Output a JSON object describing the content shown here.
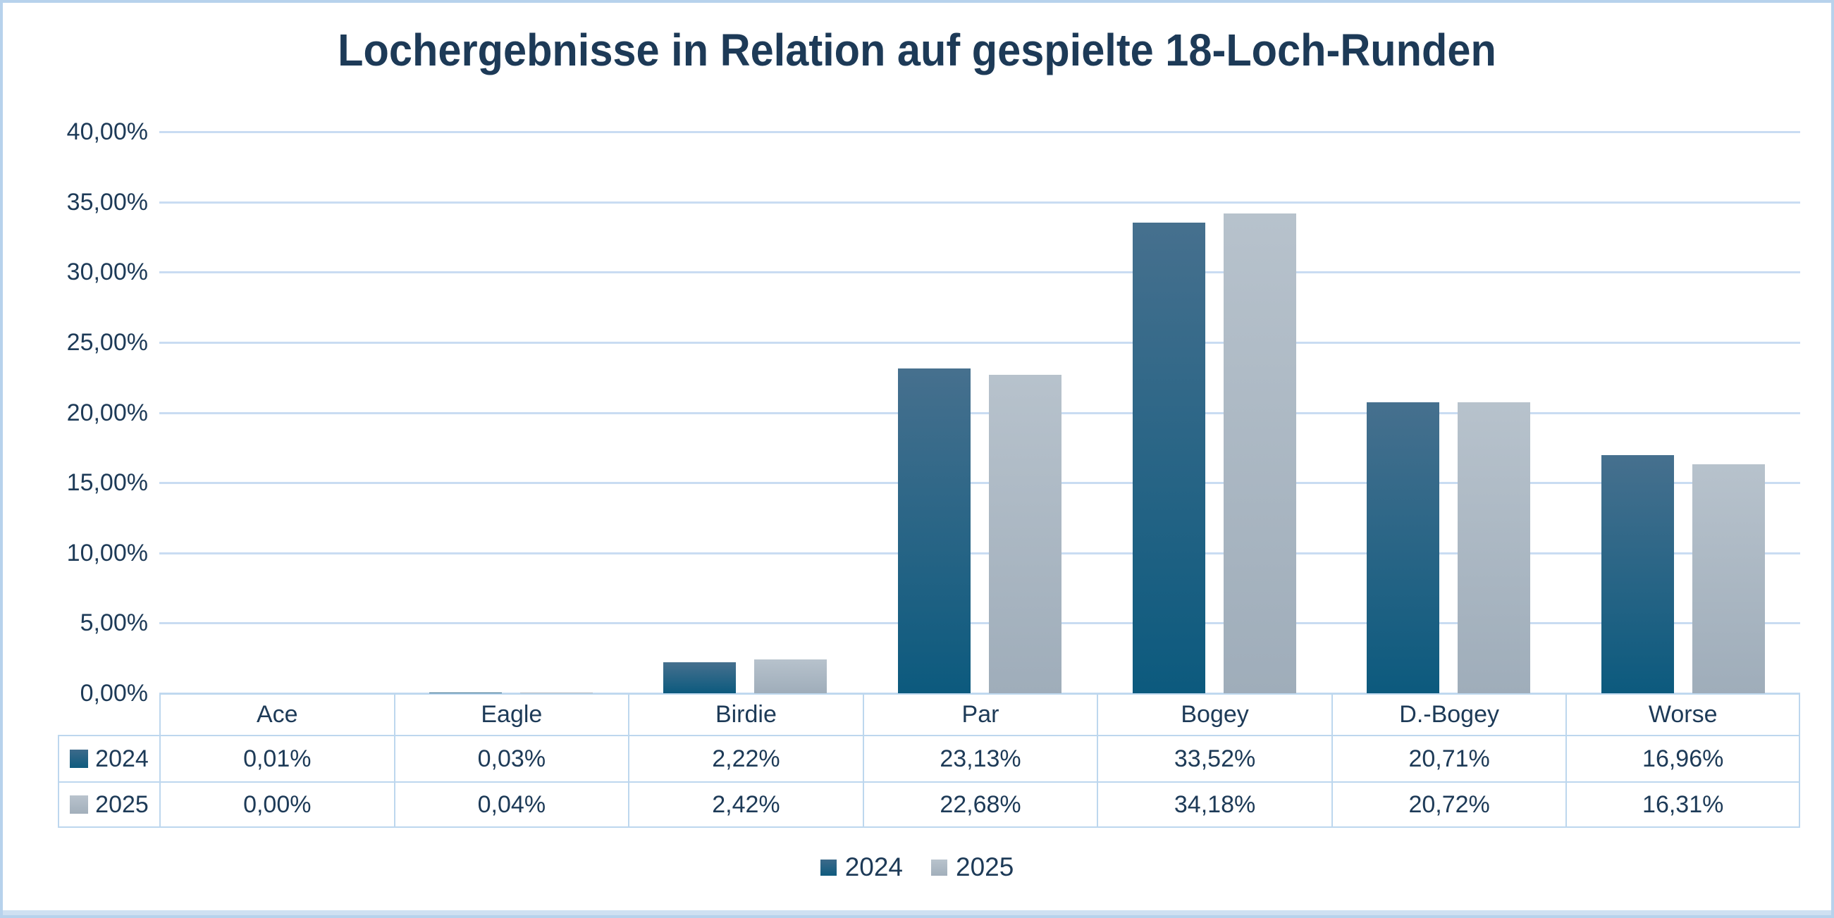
{
  "title": "Lochergebnisse in Relation auf gespielte 18-Loch-Runden",
  "chart_data": {
    "type": "bar",
    "categories": [
      "Ace",
      "Eagle",
      "Birdie",
      "Par",
      "Bogey",
      "D.-Bogey",
      "Worse"
    ],
    "series": [
      {
        "name": "2024",
        "values": [
          0.01,
          0.03,
          2.22,
          23.13,
          33.52,
          20.71,
          16.96
        ],
        "display_labels": [
          "0,01%",
          "0,03%",
          "2,22%",
          "23,13%",
          "33,52%",
          "20,71%",
          "16,96%"
        ],
        "color_top": "#46708e",
        "color_bottom": "#0c5a7e"
      },
      {
        "name": "2025",
        "values": [
          0.0,
          0.04,
          2.42,
          22.68,
          34.18,
          20.72,
          16.31
        ],
        "display_labels": [
          "0,00%",
          "0,04%",
          "2,42%",
          "22,68%",
          "34,18%",
          "20,72%",
          "16,31%"
        ],
        "color_top": "#b7c2cc",
        "color_bottom": "#9fadba"
      }
    ],
    "ylim": [
      0,
      40
    ],
    "ytick_step": 5,
    "ytick_labels": [
      "0,00%",
      "5,00%",
      "10,00%",
      "15,00%",
      "20,00%",
      "25,00%",
      "30,00%",
      "35,00%",
      "40,00%"
    ],
    "grid": true,
    "legend_position": "bottom",
    "data_table_shown": true
  },
  "legend": {
    "items": [
      "2024",
      "2025"
    ]
  },
  "colors": {
    "text_navy": "#1d3a57",
    "gridline": "#c9dcf2",
    "table_border": "#bdd7ee",
    "frame_border": "#b7d2ec",
    "bottom_strip": "#cfe0f1",
    "series_2024_top": "#46708e",
    "series_2024_bottom": "#0c5a7e",
    "series_2025_top": "#b7c2cc",
    "series_2025_bottom": "#9fadba"
  }
}
